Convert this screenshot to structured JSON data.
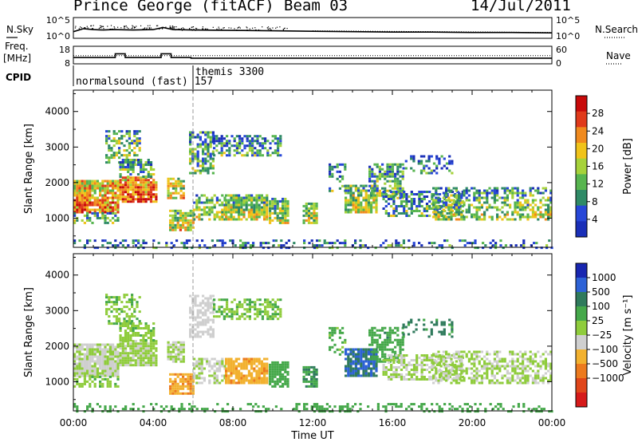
{
  "header": {
    "title": "Prince George (fitACF)",
    "beam": "Beam 03",
    "date": "14/Jul/2011"
  },
  "colors": {
    "power": [
      "#1a2fb8",
      "#2747d8",
      "#2f8a66",
      "#57b54f",
      "#a6d23a",
      "#f0c31a",
      "#f08a1e",
      "#e03a1b",
      "#c80a0a"
    ],
    "velocity": [
      "#1826b0",
      "#2d62d6",
      "#2f7a5c",
      "#45a84a",
      "#8fcc3c",
      "#cfcfcf",
      "#f2b12f",
      "#ec7a1e",
      "#e0461a",
      "#d61a1a"
    ]
  },
  "chart_data": [
    {
      "type": "line",
      "name": "noise_panel",
      "left_label": "N.Sky",
      "right_label": "N.Search",
      "left_ticks": [
        "10^5",
        "10^0"
      ],
      "right_ticks": [
        "10^5",
        "10^0"
      ],
      "x": [
        0,
        0.5,
        1,
        1.5,
        2,
        3,
        4,
        4.5,
        5,
        6,
        8,
        10,
        12,
        14,
        16,
        18,
        20,
        22,
        24
      ],
      "sky_y": [
        1.6,
        2.3,
        2.1,
        2.0,
        2.1,
        2.0,
        2.1,
        2.6,
        2.1,
        2.0,
        1.9,
        1.8,
        1.7,
        1.6,
        1.5,
        1.5,
        1.4,
        1.4,
        1.3
      ]
    },
    {
      "type": "line",
      "name": "freq_panel",
      "left_label": "Freq. [MHz]",
      "right_label": "Nave",
      "left_ticks": [
        "18",
        "8"
      ],
      "right_ticks": [
        "60",
        "0"
      ],
      "freq": [
        [
          0,
          11
        ],
        [
          2.1,
          11
        ],
        [
          2.1,
          14
        ],
        [
          2.6,
          14
        ],
        [
          2.6,
          11
        ],
        [
          4.4,
          11
        ],
        [
          4.4,
          14
        ],
        [
          4.9,
          14
        ],
        [
          4.9,
          11
        ],
        [
          5.9,
          11
        ],
        [
          5.9,
          10.5
        ],
        [
          24,
          10.5
        ]
      ],
      "nave_level": 28
    },
    {
      "type": "table",
      "name": "cpid",
      "label": "CPID",
      "entries": [
        {
          "name": "normalsound (fast) 157",
          "start": 0
        },
        {
          "name": "themis 3300",
          "start": 6.0
        }
      ]
    },
    {
      "type": "heatmap",
      "name": "power",
      "ylabel": "Slant Range [km]",
      "yticks": [
        1000,
        2000,
        3000,
        4000
      ],
      "ylim": [
        180,
        4600
      ],
      "colorbar_label": "Power [dB]",
      "colorbar_ticks": [
        "28",
        "24",
        "20",
        "16",
        "12",
        "8",
        "4"
      ],
      "crange": [
        0,
        30
      ]
    },
    {
      "type": "heatmap",
      "name": "velocity",
      "ylabel": "Slant Range [km]",
      "yticks": [
        1000,
        2000,
        3000,
        4000
      ],
      "ylim": [
        180,
        4600
      ],
      "colorbar_label": "Velocity [m s⁻¹]",
      "colorbar_ticks": [
        "1000",
        "500",
        "100",
        "25",
        "−25",
        "−100",
        "−500",
        "−1000"
      ],
      "crange": [
        -1000,
        1000
      ]
    }
  ],
  "xaxis": {
    "xlabel": "Time UT",
    "ticks": [
      "00:00",
      "04:00",
      "08:00",
      "12:00",
      "16:00",
      "20:00",
      "00:00"
    ],
    "xlim": [
      0,
      24
    ]
  },
  "scatter_regions": [
    {
      "t0": 0.0,
      "t1": 2.2,
      "r0": 1200,
      "r1": 2100,
      "p": 20,
      "v": -30,
      "d": 0.9
    },
    {
      "t0": 0.0,
      "t1": 2.3,
      "r0": 900,
      "r1": 1200,
      "p": 10,
      "v": 15,
      "d": 0.5
    },
    {
      "t0": 1.6,
      "t1": 3.3,
      "r0": 2600,
      "r1": 3500,
      "p": 12,
      "v": 15,
      "d": 0.5
    },
    {
      "t0": 2.3,
      "t1": 4.2,
      "r0": 1500,
      "r1": 2200,
      "p": 22,
      "v": -15,
      "d": 0.9
    },
    {
      "t0": 2.3,
      "t1": 4.0,
      "r0": 2200,
      "r1": 2700,
      "p": 10,
      "v": 10,
      "d": 0.6
    },
    {
      "t0": 4.7,
      "t1": 5.5,
      "r0": 1600,
      "r1": 2200,
      "p": 16,
      "v": -20,
      "d": 0.8
    },
    {
      "t0": 4.8,
      "t1": 6.0,
      "r0": 700,
      "r1": 1300,
      "p": 14,
      "v": -450,
      "d": 0.8
    },
    {
      "t0": 5.8,
      "t1": 7.0,
      "r0": 2300,
      "r1": 3500,
      "p": 10,
      "v": -60,
      "d": 0.6
    },
    {
      "t0": 6.0,
      "t1": 7.6,
      "r0": 1000,
      "r1": 1700,
      "p": 12,
      "v": -30,
      "d": 0.6
    },
    {
      "t0": 7.0,
      "t1": 10.4,
      "r0": 2800,
      "r1": 3400,
      "p": 8,
      "v": 20,
      "d": 0.6
    },
    {
      "t0": 7.6,
      "t1": 9.7,
      "r0": 1000,
      "r1": 1700,
      "p": 14,
      "v": -380,
      "d": 0.85
    },
    {
      "t0": 9.8,
      "t1": 10.8,
      "r0": 900,
      "r1": 1600,
      "p": 12,
      "v": 60,
      "d": 0.8
    },
    {
      "t0": 11.5,
      "t1": 12.2,
      "r0": 900,
      "r1": 1500,
      "p": 14,
      "v": 90,
      "d": 0.7
    },
    {
      "t0": 12.8,
      "t1": 13.6,
      "r0": 1800,
      "r1": 2600,
      "p": 8,
      "v": 40,
      "d": 0.4
    },
    {
      "t0": 13.6,
      "t1": 15.2,
      "r0": 1200,
      "r1": 2000,
      "p": 14,
      "v": 500,
      "d": 0.85
    },
    {
      "t0": 14.8,
      "t1": 16.5,
      "r0": 1600,
      "r1": 2600,
      "p": 10,
      "v": 70,
      "d": 0.6
    },
    {
      "t0": 15.5,
      "t1": 19.5,
      "r0": 1100,
      "r1": 1800,
      "p": 9,
      "v": -25,
      "d": 0.6
    },
    {
      "t0": 18.0,
      "t1": 24.0,
      "r0": 1000,
      "r1": 1900,
      "p": 12,
      "v": -20,
      "d": 0.55
    },
    {
      "t0": 16.5,
      "t1": 19.0,
      "r0": 2300,
      "r1": 2800,
      "p": 7,
      "v": 150,
      "d": 0.35
    },
    {
      "t0": 0.0,
      "t1": 24.0,
      "r0": 200,
      "r1": 450,
      "p": 6,
      "v": 60,
      "d": 0.3
    }
  ]
}
